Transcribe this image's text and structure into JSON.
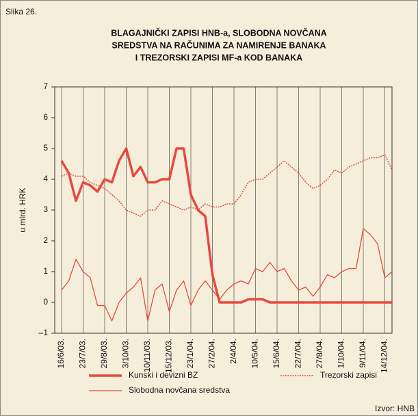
{
  "figure_label": "Slika 26.",
  "source": "Izvor: HNB",
  "chart_data": {
    "type": "line",
    "title": [
      "BLAGAJNIČKI ZAPISI HNB-a, SLOBODNA NOVČANA",
      "SREDSTVA NA RAČUNIMA ZA NAMIRENJE BANAKA",
      "I TREZORSKI ZAPISI MF-a KOD BANAKA"
    ],
    "y_label": "u mlrd. HRK",
    "categories": [
      "16/6/03.",
      null,
      null,
      "23/7/03.",
      null,
      null,
      "29/8/03.",
      null,
      null,
      "3/10/03.",
      null,
      null,
      "10/11/03.",
      null,
      null,
      "15/12/03.",
      null,
      null,
      "23/1/04.",
      null,
      null,
      "27/2/04.",
      null,
      null,
      "2/4/04.",
      null,
      null,
      "10/5/04.",
      null,
      null,
      "15/6/04.",
      null,
      null,
      "22/7/04.",
      null,
      null,
      "27/8/04.",
      null,
      null,
      "1/10/04.",
      null,
      null,
      "9/11/04.",
      null,
      null,
      "14/12/04.",
      null
    ],
    "ylim": [
      -1,
      7
    ],
    "yticks": [
      {
        "value": -1,
        "label": "–1"
      },
      0,
      1,
      2,
      3,
      4,
      5,
      6,
      7
    ],
    "grid_x": true,
    "series": [
      {
        "name": "Kunski i devizni BZ",
        "color": "#e8493c",
        "style": "thick",
        "values": [
          4.6,
          4.2,
          3.3,
          3.9,
          3.8,
          3.6,
          4.0,
          3.9,
          4.6,
          5.0,
          4.1,
          4.4,
          3.9,
          3.9,
          4.0,
          4.0,
          5.0,
          5.0,
          3.5,
          3.0,
          2.8,
          0.9,
          0,
          0,
          0,
          0,
          0.1,
          0.1,
          0.1,
          0,
          0,
          0,
          0,
          0,
          0,
          0,
          0,
          0,
          0,
          0,
          0,
          0,
          0,
          0,
          0,
          0,
          0
        ]
      },
      {
        "name": "Trezorski zapisi",
        "color": "#e8493c",
        "style": "dotted",
        "values": [
          4.1,
          4.2,
          4.1,
          4.1,
          3.9,
          3.8,
          3.7,
          3.5,
          3.3,
          3.0,
          2.9,
          2.8,
          3.0,
          3.0,
          3.3,
          3.2,
          3.1,
          3.0,
          3.1,
          3.0,
          3.2,
          3.1,
          3.1,
          3.2,
          3.2,
          3.5,
          3.9,
          4.0,
          4.0,
          4.2,
          4.4,
          4.6,
          4.4,
          4.2,
          3.9,
          3.7,
          3.8,
          4.0,
          4.3,
          4.2,
          4.4,
          4.5,
          4.6,
          4.7,
          4.7,
          4.8,
          4.3
        ]
      },
      {
        "name": "Slobodna novčana sredstva",
        "color": "#e8493c",
        "style": "thin",
        "values": [
          0.4,
          0.7,
          1.4,
          1.0,
          0.8,
          -0.1,
          -0.1,
          -0.6,
          0,
          0.3,
          0.5,
          0.8,
          -0.6,
          0.4,
          0.6,
          -0.3,
          0.4,
          0.7,
          -0.1,
          0.4,
          0.7,
          0.4,
          0.1,
          0.4,
          0.6,
          0.7,
          0.6,
          1.1,
          1.0,
          1.3,
          1.0,
          1.1,
          0.7,
          0.4,
          0.5,
          0.2,
          0.5,
          0.9,
          0.8,
          1.0,
          1.1,
          1.1,
          2.4,
          2.2,
          1.9,
          0.8,
          1.0
        ]
      }
    ]
  }
}
